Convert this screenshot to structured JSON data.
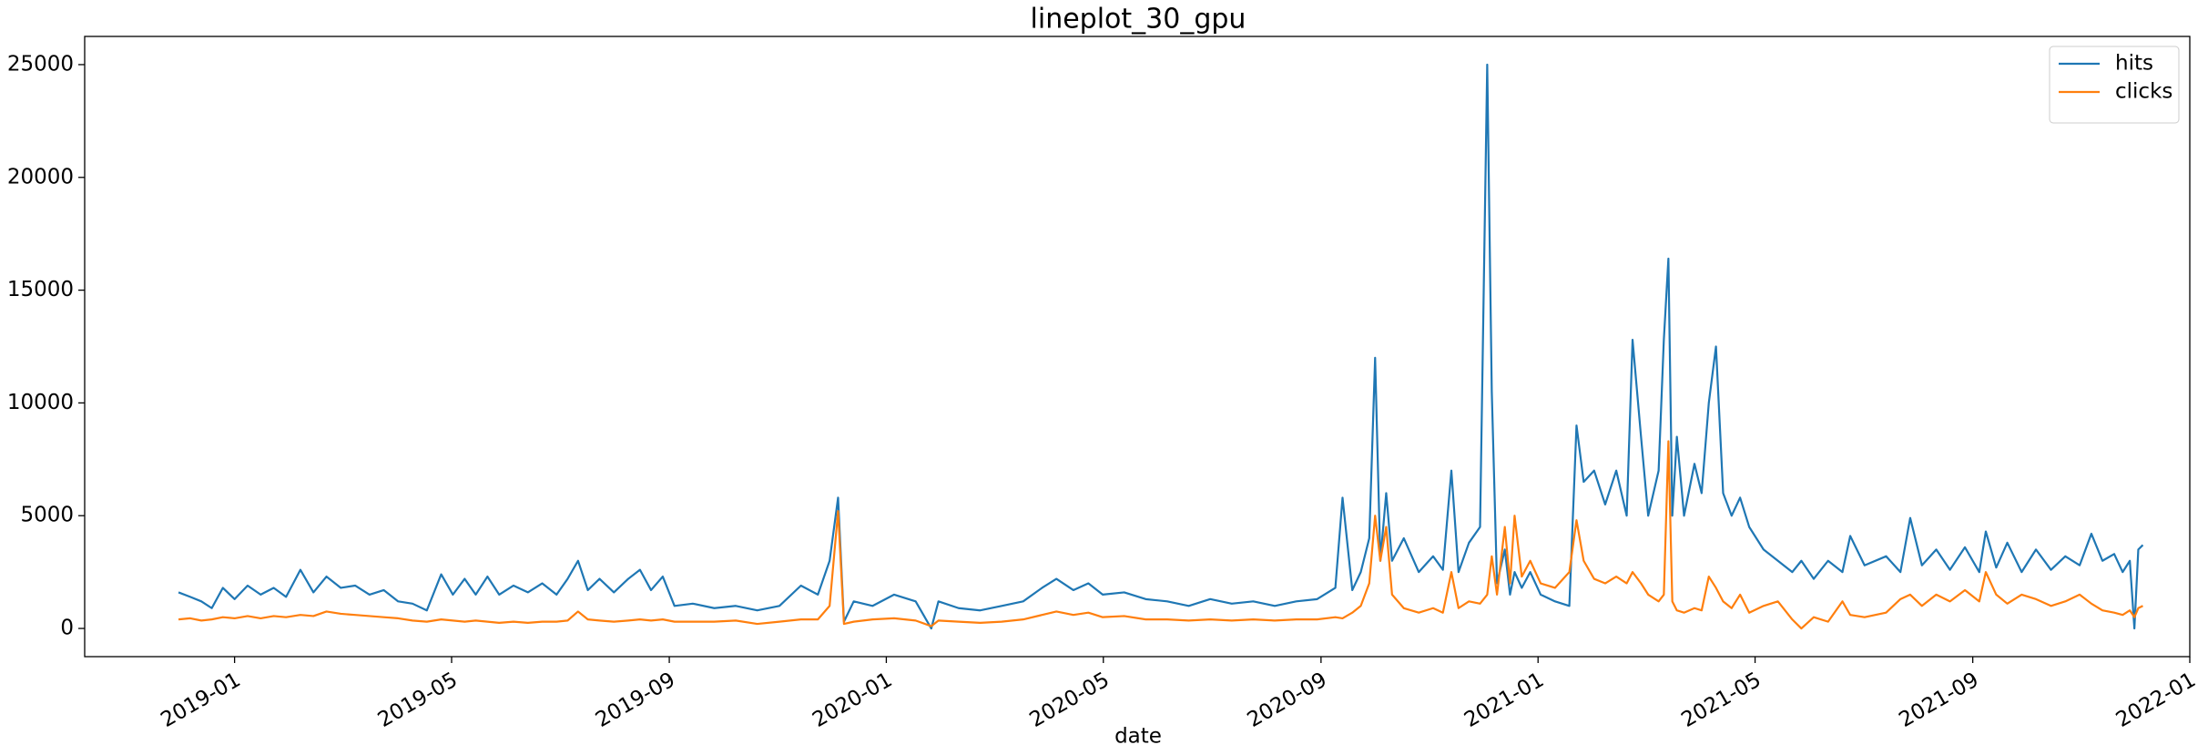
{
  "chart_data": {
    "type": "line",
    "title": "lineplot_30_gpu",
    "x_label": "date",
    "x": [
      2018.914,
      2018.932,
      2018.949,
      2018.965,
      2018.982,
      2019.0,
      2019.02,
      2019.04,
      2019.06,
      2019.079,
      2019.101,
      2019.121,
      2019.141,
      2019.163,
      2019.185,
      2019.207,
      2019.229,
      2019.251,
      2019.273,
      2019.295,
      2019.317,
      2019.335,
      2019.353,
      2019.37,
      2019.388,
      2019.406,
      2019.428,
      2019.45,
      2019.472,
      2019.494,
      2019.511,
      2019.527,
      2019.542,
      2019.56,
      2019.582,
      2019.604,
      2019.622,
      2019.639,
      2019.657,
      2019.675,
      2019.703,
      2019.736,
      2019.769,
      2019.802,
      2019.836,
      2019.869,
      2019.895,
      2019.913,
      2019.926,
      2019.935,
      2019.95,
      2019.979,
      2020.012,
      2020.045,
      2020.069,
      2020.08,
      2020.111,
      2020.144,
      2020.177,
      2020.21,
      2020.239,
      2020.261,
      2020.287,
      2020.31,
      2020.332,
      2020.365,
      2020.398,
      2020.431,
      2020.464,
      2020.497,
      2020.53,
      2020.563,
      2020.596,
      2020.629,
      2020.661,
      2020.689,
      2020.7,
      2020.715,
      2020.728,
      2020.741,
      2020.75,
      2020.758,
      2020.767,
      2020.776,
      2020.794,
      2020.817,
      2020.839,
      2020.854,
      2020.867,
      2020.878,
      2020.894,
      2020.911,
      2020.922,
      2020.929,
      2020.937,
      2020.949,
      2020.957,
      2020.964,
      2020.975,
      2020.988,
      2021.004,
      2021.026,
      2021.048,
      2021.059,
      2021.07,
      2021.086,
      2021.103,
      2021.12,
      2021.136,
      2021.145,
      2021.158,
      2021.169,
      2021.185,
      2021.193,
      2021.2,
      2021.206,
      2021.213,
      2021.224,
      2021.24,
      2021.251,
      2021.262,
      2021.273,
      2021.284,
      2021.297,
      2021.31,
      2021.324,
      2021.346,
      2021.368,
      2021.39,
      2021.404,
      2021.423,
      2021.445,
      2021.467,
      2021.479,
      2021.501,
      2021.534,
      2021.556,
      2021.571,
      2021.589,
      2021.611,
      2021.632,
      2021.655,
      2021.677,
      2021.687,
      2021.703,
      2021.72,
      2021.742,
      2021.764,
      2021.787,
      2021.809,
      2021.831,
      2021.849,
      2021.866,
      2021.884,
      2021.897,
      2021.908,
      2021.915,
      2021.921,
      2021.928
    ],
    "series": [
      {
        "name": "hits",
        "color": "#1f77b4",
        "values": [
          1600,
          1400,
          1200,
          900,
          1800,
          1300,
          1900,
          1500,
          1800,
          1400,
          2600,
          1600,
          2300,
          1800,
          1900,
          1500,
          1700,
          1200,
          1100,
          800,
          2400,
          1500,
          2200,
          1500,
          2300,
          1500,
          1900,
          1600,
          2000,
          1500,
          2200,
          3000,
          1700,
          2200,
          1600,
          2200,
          2600,
          1700,
          2300,
          1000,
          1100,
          900,
          1000,
          800,
          1000,
          1900,
          1500,
          3000,
          5800,
          300,
          1200,
          1000,
          1500,
          1200,
          0,
          1200,
          900,
          800,
          1000,
          1200,
          1800,
          2200,
          1700,
          2000,
          1500,
          1600,
          1300,
          1200,
          1000,
          1300,
          1100,
          1200,
          1000,
          1200,
          1300,
          1800,
          5800,
          1700,
          2500,
          4000,
          12000,
          3000,
          6000,
          3000,
          4000,
          2500,
          3200,
          2600,
          7000,
          2500,
          3800,
          4500,
          25000,
          10500,
          2000,
          3500,
          1500,
          2500,
          1800,
          2500,
          1500,
          1200,
          1000,
          9000,
          6500,
          7000,
          5500,
          7000,
          5000,
          12800,
          8500,
          5000,
          7000,
          12800,
          16400,
          5000,
          8500,
          5000,
          7300,
          6000,
          10000,
          12500,
          6000,
          5000,
          5800,
          4500,
          3500,
          3000,
          2500,
          3000,
          2200,
          3000,
          2500,
          4100,
          2800,
          3200,
          2500,
          4900,
          2800,
          3500,
          2600,
          3600,
          2500,
          4300,
          2700,
          3800,
          2500,
          3500,
          2600,
          3200,
          2800,
          4200,
          3000,
          3300,
          2500,
          3000,
          0,
          3500,
          3700
        ]
      },
      {
        "name": "clicks",
        "color": "#ff7f0e",
        "values": [
          400,
          450,
          350,
          400,
          500,
          450,
          550,
          450,
          550,
          500,
          600,
          550,
          750,
          650,
          600,
          550,
          500,
          450,
          350,
          300,
          400,
          350,
          300,
          350,
          300,
          250,
          300,
          250,
          300,
          300,
          350,
          750,
          400,
          350,
          300,
          350,
          400,
          350,
          400,
          300,
          300,
          300,
          350,
          200,
          300,
          400,
          400,
          1000,
          5200,
          200,
          300,
          400,
          450,
          350,
          100,
          350,
          300,
          250,
          300,
          400,
          600,
          750,
          600,
          700,
          500,
          550,
          400,
          400,
          350,
          400,
          350,
          400,
          350,
          400,
          400,
          500,
          450,
          700,
          1000,
          2000,
          5000,
          3000,
          4500,
          1500,
          900,
          700,
          900,
          700,
          2500,
          900,
          1200,
          1100,
          1500,
          3200,
          1500,
          4500,
          2000,
          5000,
          2300,
          3000,
          2000,
          1800,
          2500,
          4800,
          3000,
          2200,
          2000,
          2300,
          2000,
          2500,
          2000,
          1500,
          1200,
          1500,
          8300,
          1200,
          800,
          700,
          900,
          800,
          2300,
          1800,
          1200,
          900,
          1500,
          700,
          1000,
          1200,
          400,
          0,
          500,
          300,
          1200,
          600,
          500,
          700,
          1300,
          1500,
          1000,
          1500,
          1200,
          1700,
          1200,
          2500,
          1500,
          1100,
          1500,
          1300,
          1000,
          1200,
          1500,
          1100,
          800,
          700,
          600,
          800,
          500,
          900,
          1000
        ]
      }
    ],
    "xlim": [
      2018.77,
      2022.0
    ],
    "xticks": [
      {
        "value": 2019.0,
        "label": "2019-01"
      },
      {
        "value": 2019.333,
        "label": "2019-05"
      },
      {
        "value": 2019.667,
        "label": "2019-09"
      },
      {
        "value": 2020.0,
        "label": "2020-01"
      },
      {
        "value": 2020.333,
        "label": "2020-05"
      },
      {
        "value": 2020.667,
        "label": "2020-09"
      },
      {
        "value": 2021.0,
        "label": "2021-01"
      },
      {
        "value": 2021.333,
        "label": "2021-05"
      },
      {
        "value": 2021.667,
        "label": "2021-09"
      },
      {
        "value": 2022.0,
        "label": "2022-01"
      }
    ],
    "ylim": [
      -1250,
      26250
    ],
    "yticks": [
      0,
      5000,
      10000,
      15000,
      20000,
      25000
    ],
    "legend": "upper right",
    "grid": false
  }
}
